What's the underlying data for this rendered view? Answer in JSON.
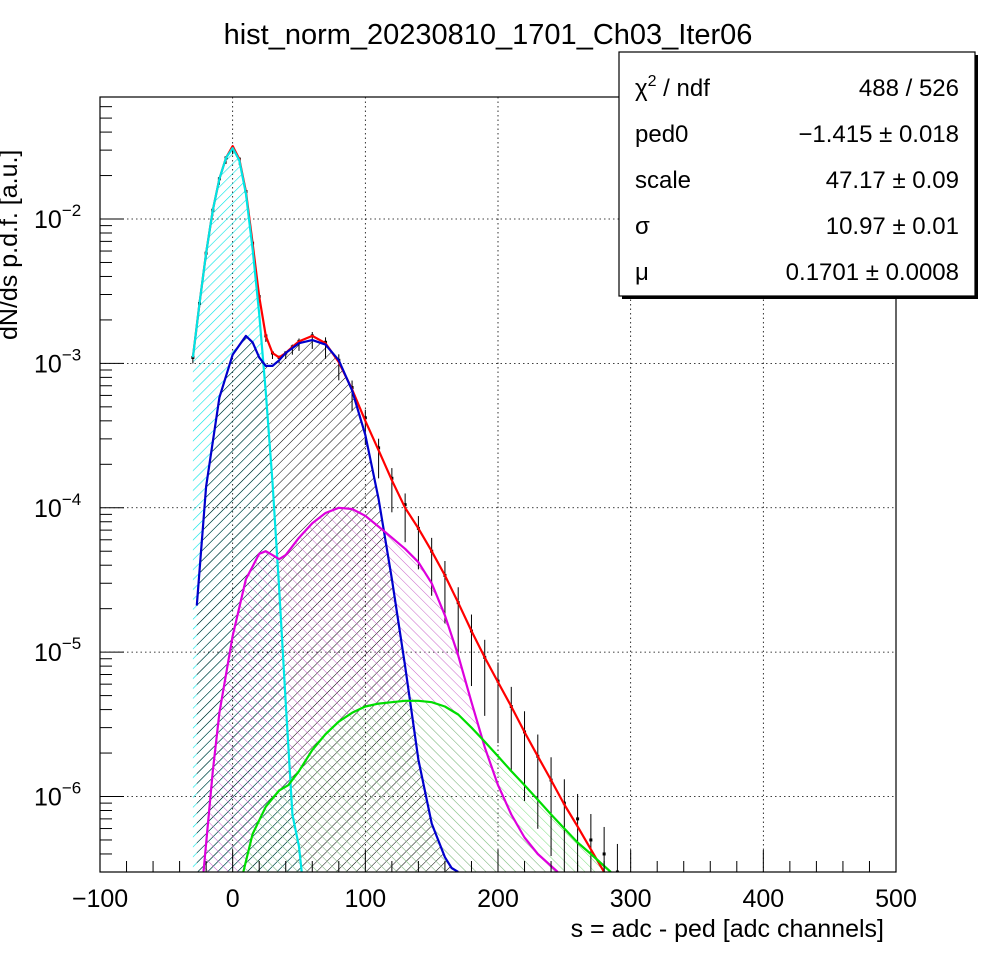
{
  "chart_data": {
    "type": "line",
    "title": "hist_norm_20230810_1701_Ch03_Iter06",
    "xlabel": "s = adc - ped [adc channels]",
    "ylabel": "dN/ds p.d.f. [a.u.]",
    "xlim": [
      -100,
      500
    ],
    "ylim": [
      3e-07,
      0.07
    ],
    "yscale": "log",
    "grid": true,
    "x_ticks": [
      "−100",
      "0",
      "100",
      "200",
      "300",
      "400",
      "500"
    ],
    "x_tick_values": [
      -100,
      0,
      100,
      200,
      300,
      400,
      500
    ],
    "y_ticks": [
      {
        "base": "10",
        "exp": "−6",
        "value": 1e-06
      },
      {
        "base": "10",
        "exp": "−5",
        "value": 1e-05
      },
      {
        "base": "10",
        "exp": "−4",
        "value": 0.0001
      },
      {
        "base": "10",
        "exp": "−3",
        "value": 0.001
      },
      {
        "base": "10",
        "exp": "−2",
        "value": 0.01
      }
    ],
    "stats_box": {
      "placement": "top-right",
      "rows": [
        {
          "label": "χ",
          "label_sup": "2",
          "label_suffix": " / ndf",
          "value": "488 / 526"
        },
        {
          "label": "ped0",
          "label_sup": "",
          "label_suffix": "",
          "value": "−1.415 ± 0.018"
        },
        {
          "label": "scale",
          "label_sup": "",
          "label_suffix": "",
          "value": "47.17 ± 0.09"
        },
        {
          "label": "σ",
          "label_sup": "",
          "label_suffix": "",
          "value": "10.97 ± 0.01"
        },
        {
          "label": "μ",
          "label_sup": "",
          "label_suffix": "",
          "value": "0.1701 ± 0.0008"
        }
      ]
    },
    "series": [
      {
        "role": "data-histogram",
        "color": "#000000",
        "x": [
          -30,
          -25,
          -20,
          -15,
          -10,
          -5,
          0,
          5,
          10,
          15,
          20,
          25,
          30,
          35,
          40,
          45,
          50,
          60,
          70,
          80,
          90,
          100,
          110,
          120,
          130,
          140,
          150,
          160,
          170,
          180,
          190,
          200,
          210,
          220,
          230,
          240,
          250,
          260,
          270,
          280,
          290
        ],
        "y": [
          0.0011,
          0.0026,
          0.0058,
          0.0115,
          0.019,
          0.0265,
          0.031,
          0.026,
          0.0155,
          0.0068,
          0.0029,
          0.00155,
          0.00118,
          0.0011,
          0.00118,
          0.0013,
          0.00142,
          0.00155,
          0.0014,
          0.00105,
          0.00068,
          0.00042,
          0.00026,
          0.00016,
          0.000105,
          7.2e-05,
          5e-05,
          3.4e-05,
          2.2e-05,
          1.4e-05,
          9.2e-06,
          6.3e-06,
          4.2e-06,
          2.8e-06,
          1.9e-06,
          1.3e-06,
          9e-07,
          7e-07,
          5e-07,
          4e-07,
          3e-07
        ]
      },
      {
        "role": "total-fit",
        "color": "#ff0000",
        "x": [
          -30,
          -25,
          -20,
          -15,
          -10,
          -5,
          0,
          5,
          10,
          15,
          20,
          25,
          30,
          35,
          40,
          45,
          50,
          60,
          70,
          80,
          90,
          100,
          110,
          120,
          130,
          140,
          150,
          160,
          170,
          180,
          190,
          200,
          210,
          220,
          230,
          240,
          250,
          260,
          270,
          280
        ],
        "y": [
          0.0011,
          0.0026,
          0.0058,
          0.0115,
          0.019,
          0.0265,
          0.032,
          0.026,
          0.0155,
          0.0068,
          0.0029,
          0.00155,
          0.00118,
          0.0011,
          0.00118,
          0.0013,
          0.00142,
          0.00155,
          0.00138,
          0.00102,
          0.00066,
          0.0004,
          0.00025,
          0.000155,
          0.0001,
          7.2e-05,
          5e-05,
          3.4e-05,
          2.2e-05,
          1.4e-05,
          9.2e-06,
          6.2e-06,
          4.2e-06,
          2.8e-06,
          1.9e-06,
          1.3e-06,
          8.8e-07,
          6.2e-07,
          4.3e-07,
          3e-07
        ]
      },
      {
        "role": "component-0pe",
        "color": "#00e5e5",
        "fill": "hatch",
        "x": [
          -30,
          -25,
          -20,
          -15,
          -10,
          -5,
          0,
          5,
          10,
          15,
          20,
          25,
          30,
          35,
          40,
          45,
          50,
          52
        ],
        "y": [
          0.0011,
          0.0026,
          0.0058,
          0.0115,
          0.019,
          0.0265,
          0.031,
          0.0255,
          0.015,
          0.0062,
          0.0022,
          0.00063,
          0.00015,
          2.8e-05,
          4.5e-06,
          7.5e-07,
          4.5e-07,
          3e-07
        ]
      },
      {
        "role": "component-1pe",
        "color": "#0000cc",
        "fill": "hatch",
        "x": [
          -27,
          -20,
          -10,
          0,
          10,
          15,
          20,
          25,
          30,
          35,
          40,
          50,
          60,
          70,
          80,
          90,
          100,
          110,
          120,
          130,
          140,
          150,
          160,
          165,
          170
        ],
        "y": [
          2.1e-05,
          0.00014,
          0.00058,
          0.00115,
          0.00155,
          0.0014,
          0.0011,
          0.00096,
          0.00096,
          0.00105,
          0.00118,
          0.00138,
          0.00145,
          0.00135,
          0.00105,
          0.00065,
          0.00032,
          0.000115,
          3.2e-05,
          8e-06,
          1.8e-06,
          6.5e-07,
          3.8e-07,
          3.2e-07,
          3e-07
        ]
      },
      {
        "role": "component-2pe",
        "color": "#dd00dd",
        "fill": "hatch",
        "x": [
          -22,
          -15,
          -10,
          0,
          10,
          20,
          25,
          30,
          35,
          40,
          50,
          60,
          70,
          80,
          90,
          100,
          110,
          120,
          130,
          140,
          150,
          160,
          170,
          180,
          190,
          200,
          210,
          220,
          230,
          240,
          245
        ],
        "y": [
          3e-07,
          1.5e-06,
          3.8e-06,
          1.3e-05,
          3.2e-05,
          4.8e-05,
          5e-05,
          4.7e-05,
          4.4e-05,
          4.7e-05,
          6.2e-05,
          7.8e-05,
          9.2e-05,
          0.0001,
          9.8e-05,
          8.8e-05,
          7.4e-05,
          6.2e-05,
          5.2e-05,
          4.2e-05,
          3e-05,
          1.8e-05,
          9.5e-06,
          4.5e-06,
          2.2e-06,
          1.2e-06,
          7.5e-07,
          5.2e-07,
          4e-07,
          3.3e-07,
          3e-07
        ]
      },
      {
        "role": "component-3pe",
        "color": "#00dd00",
        "fill": "hatch",
        "x": [
          8,
          15,
          25,
          35,
          42,
          50,
          60,
          70,
          80,
          90,
          100,
          110,
          120,
          130,
          140,
          150,
          160,
          170,
          180,
          190,
          200,
          210,
          220,
          230,
          240,
          250,
          260,
          270,
          280,
          285
        ],
        "y": [
          3e-07,
          5.5e-07,
          8.5e-07,
          1.1e-06,
          1.2e-06,
          1.5e-06,
          2.1e-06,
          2.7e-06,
          3.3e-06,
          3.8e-06,
          4.2e-06,
          4.4e-06,
          4.5e-06,
          4.6e-06,
          4.6e-06,
          4.5e-06,
          4.2e-06,
          3.7e-06,
          3e-06,
          2.4e-06,
          1.9e-06,
          1.5e-06,
          1.2e-06,
          9.5e-07,
          7.5e-07,
          6e-07,
          4.8e-07,
          4e-07,
          3.3e-07,
          3e-07
        ]
      }
    ]
  }
}
